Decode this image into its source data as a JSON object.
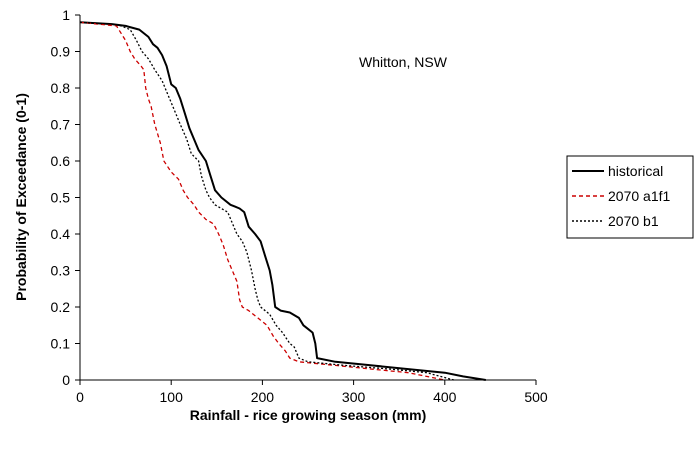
{
  "chart_data": {
    "type": "line",
    "title": "",
    "xlabel": "Rainfall - rice growing season (mm)",
    "ylabel": "Probability of Exceedance (0-1)",
    "xlim": [
      0,
      500
    ],
    "ylim": [
      0,
      1
    ],
    "x_ticks": [
      "0",
      "100",
      "200",
      "300",
      "400",
      "500"
    ],
    "y_ticks": [
      "0",
      "0.1",
      "0.2",
      "0.3",
      "0.4",
      "0.5",
      "0.6",
      "0.7",
      "0.8",
      "0.9",
      "1"
    ],
    "grid": false,
    "legend_position": "right",
    "annotation": "Whitton, NSW",
    "series": [
      {
        "name": "historical",
        "color": "#000000",
        "dash": "solid",
        "points": [
          [
            0,
            0.98
          ],
          [
            35,
            0.975
          ],
          [
            50,
            0.97
          ],
          [
            65,
            0.96
          ],
          [
            75,
            0.94
          ],
          [
            80,
            0.92
          ],
          [
            85,
            0.91
          ],
          [
            90,
            0.89
          ],
          [
            95,
            0.86
          ],
          [
            100,
            0.81
          ],
          [
            105,
            0.8
          ],
          [
            110,
            0.77
          ],
          [
            115,
            0.73
          ],
          [
            120,
            0.69
          ],
          [
            125,
            0.66
          ],
          [
            130,
            0.63
          ],
          [
            138,
            0.6
          ],
          [
            143,
            0.56
          ],
          [
            148,
            0.52
          ],
          [
            155,
            0.5
          ],
          [
            165,
            0.48
          ],
          [
            170,
            0.475
          ],
          [
            175,
            0.47
          ],
          [
            180,
            0.46
          ],
          [
            185,
            0.42
          ],
          [
            192,
            0.4
          ],
          [
            198,
            0.38
          ],
          [
            203,
            0.34
          ],
          [
            208,
            0.3
          ],
          [
            211,
            0.26
          ],
          [
            214,
            0.2
          ],
          [
            220,
            0.19
          ],
          [
            230,
            0.185
          ],
          [
            240,
            0.17
          ],
          [
            245,
            0.15
          ],
          [
            250,
            0.14
          ],
          [
            255,
            0.13
          ],
          [
            258,
            0.1
          ],
          [
            260,
            0.06
          ],
          [
            280,
            0.05
          ],
          [
            320,
            0.04
          ],
          [
            360,
            0.03
          ],
          [
            400,
            0.02
          ],
          [
            420,
            0.01
          ],
          [
            445,
            0
          ]
        ]
      },
      {
        "name": "2070 a1f1",
        "color": "#cc0000",
        "dash": "dashed",
        "points": [
          [
            0,
            0.98
          ],
          [
            40,
            0.97
          ],
          [
            50,
            0.93
          ],
          [
            55,
            0.9
          ],
          [
            60,
            0.88
          ],
          [
            67,
            0.86
          ],
          [
            70,
            0.85
          ],
          [
            72,
            0.8
          ],
          [
            75,
            0.77
          ],
          [
            78,
            0.75
          ],
          [
            82,
            0.7
          ],
          [
            88,
            0.65
          ],
          [
            92,
            0.6
          ],
          [
            100,
            0.57
          ],
          [
            108,
            0.55
          ],
          [
            113,
            0.52
          ],
          [
            118,
            0.5
          ],
          [
            125,
            0.48
          ],
          [
            130,
            0.46
          ],
          [
            138,
            0.44
          ],
          [
            145,
            0.43
          ],
          [
            148,
            0.42
          ],
          [
            152,
            0.4
          ],
          [
            157,
            0.37
          ],
          [
            162,
            0.33
          ],
          [
            167,
            0.3
          ],
          [
            172,
            0.27
          ],
          [
            175,
            0.22
          ],
          [
            178,
            0.2
          ],
          [
            185,
            0.19
          ],
          [
            195,
            0.17
          ],
          [
            205,
            0.15
          ],
          [
            212,
            0.12
          ],
          [
            218,
            0.1
          ],
          [
            225,
            0.08
          ],
          [
            230,
            0.06
          ],
          [
            240,
            0.05
          ],
          [
            280,
            0.04
          ],
          [
            320,
            0.03
          ],
          [
            360,
            0.02
          ],
          [
            400,
            0
          ]
        ]
      },
      {
        "name": "2070 b1",
        "color": "#000000",
        "dash": "dotted",
        "points": [
          [
            0,
            0.98
          ],
          [
            35,
            0.975
          ],
          [
            45,
            0.97
          ],
          [
            55,
            0.96
          ],
          [
            62,
            0.93
          ],
          [
            68,
            0.9
          ],
          [
            75,
            0.88
          ],
          [
            82,
            0.85
          ],
          [
            90,
            0.82
          ],
          [
            95,
            0.79
          ],
          [
            100,
            0.76
          ],
          [
            105,
            0.73
          ],
          [
            110,
            0.7
          ],
          [
            117,
            0.66
          ],
          [
            122,
            0.62
          ],
          [
            130,
            0.6
          ],
          [
            133,
            0.56
          ],
          [
            138,
            0.52
          ],
          [
            142,
            0.5
          ],
          [
            148,
            0.48
          ],
          [
            155,
            0.47
          ],
          [
            162,
            0.46
          ],
          [
            167,
            0.43
          ],
          [
            172,
            0.4
          ],
          [
            178,
            0.38
          ],
          [
            183,
            0.35
          ],
          [
            188,
            0.3
          ],
          [
            192,
            0.25
          ],
          [
            195,
            0.22
          ],
          [
            198,
            0.2
          ],
          [
            208,
            0.18
          ],
          [
            215,
            0.15
          ],
          [
            222,
            0.13
          ],
          [
            230,
            0.1
          ],
          [
            235,
            0.09
          ],
          [
            240,
            0.06
          ],
          [
            250,
            0.05
          ],
          [
            290,
            0.04
          ],
          [
            340,
            0.03
          ],
          [
            380,
            0.02
          ],
          [
            410,
            0
          ]
        ]
      }
    ]
  }
}
